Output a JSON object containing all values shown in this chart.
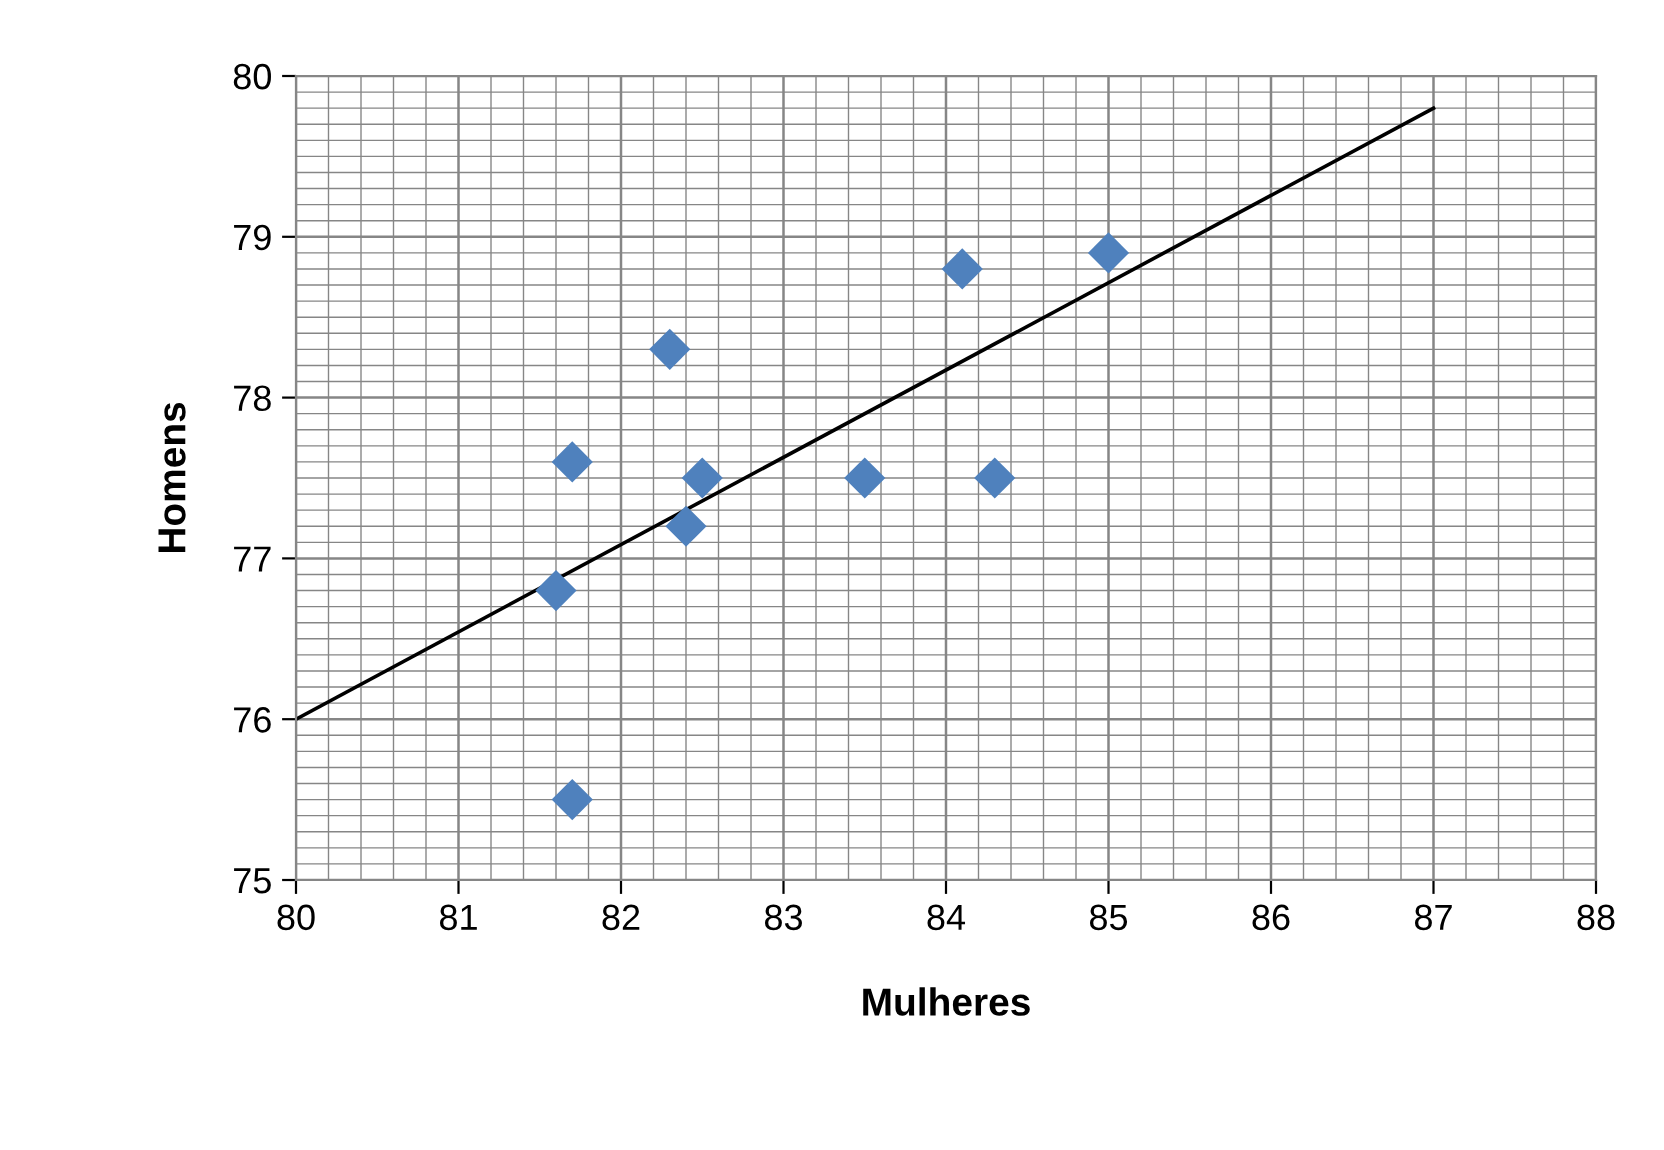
{
  "chart_data": {
    "type": "scatter",
    "xlabel": "Mulheres",
    "ylabel": "Homens",
    "xlim": [
      80,
      88
    ],
    "xticks": [
      80,
      81,
      82,
      83,
      84,
      85,
      86,
      87,
      88
    ],
    "ylim": [
      75,
      80
    ],
    "yticks": [
      75,
      76,
      77,
      78,
      79,
      80
    ],
    "grid": true,
    "legend": false,
    "marker": "diamond",
    "series": [
      {
        "color": "#4f81bd",
        "x": [
          81.6,
          81.7,
          81.7,
          82.3,
          82.4,
          82.5,
          83.5,
          84.1,
          84.3,
          85.0
        ],
        "values": [
          76.8,
          77.6,
          75.5,
          78.3,
          77.2,
          77.5,
          77.5,
          78.8,
          77.5,
          78.9
        ]
      },
      {
        "type": "line",
        "color": "#000000",
        "marker": "none",
        "x": [
          80,
          87
        ],
        "values": [
          76.0,
          79.8
        ]
      }
    ]
  }
}
